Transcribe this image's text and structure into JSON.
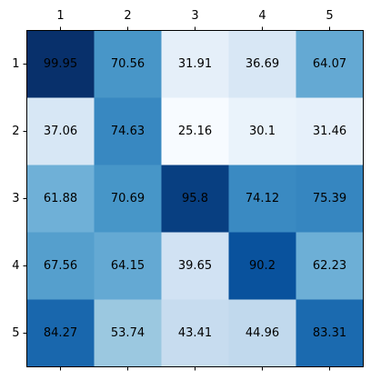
{
  "chart_data": {
    "type": "heatmap",
    "title": "",
    "xlabel": "",
    "ylabel": "",
    "x_tick_labels": [
      "1",
      "2",
      "3",
      "4",
      "5"
    ],
    "y_tick_labels": [
      "1",
      "2",
      "3",
      "4",
      "5"
    ],
    "x_tick_position": "top",
    "colormap": "Blues",
    "value_range": [
      25.16,
      99.95
    ],
    "grid": false,
    "values": [
      [
        99.95,
        70.56,
        31.91,
        36.69,
        64.07
      ],
      [
        37.06,
        74.63,
        25.16,
        30.1,
        31.46
      ],
      [
        61.88,
        70.69,
        95.8,
        74.12,
        75.39
      ],
      [
        67.56,
        64.15,
        39.65,
        90.2,
        62.23
      ],
      [
        84.27,
        53.74,
        43.41,
        44.96,
        83.31
      ]
    ],
    "labels": [
      [
        "99.95",
        "70.56",
        "31.91",
        "36.69",
        "64.07"
      ],
      [
        "37.06",
        "74.63",
        "25.16",
        "30.1",
        "31.46"
      ],
      [
        "61.88",
        "70.69",
        "95.8",
        "74.12",
        "75.39"
      ],
      [
        "67.56",
        "64.15",
        "39.65",
        "90.2",
        "62.23"
      ],
      [
        "84.27",
        "53.74",
        "43.41",
        "44.96",
        "83.31"
      ]
    ]
  }
}
